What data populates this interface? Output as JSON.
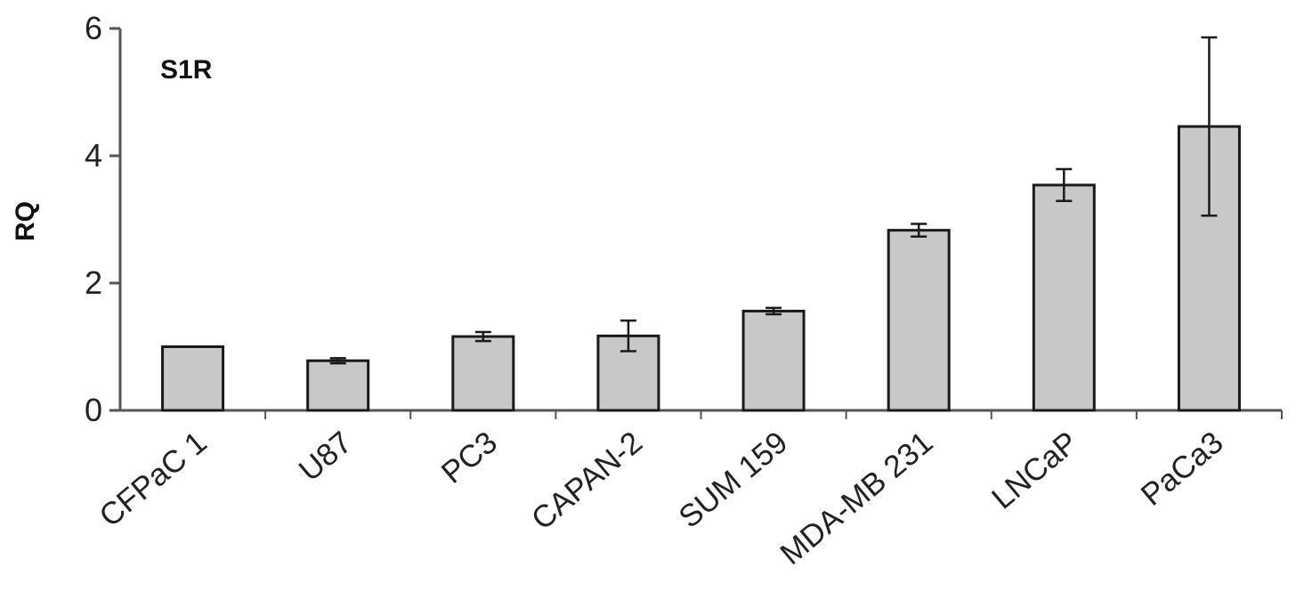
{
  "chart_data": {
    "type": "bar",
    "title": "",
    "annotation": "S1R",
    "ylabel": "RQ",
    "xlabel": "",
    "ylim": [
      0,
      6
    ],
    "yticks": [
      0,
      2,
      4,
      6
    ],
    "grid": false,
    "categories": [
      "CFPaC 1",
      "U87",
      "PC3",
      "CAPAN-2",
      "SUM 159",
      "MDA-MB 231",
      "LNCaP",
      "PaCa3"
    ],
    "values": [
      1.0,
      0.78,
      1.16,
      1.17,
      1.56,
      2.83,
      3.54,
      4.46
    ],
    "errors": [
      0,
      0.04,
      0.07,
      0.24,
      0.05,
      0.1,
      0.25,
      1.4
    ],
    "colors": {
      "bar_fill": "#c8c8c8",
      "bar_stroke": "#1a1a1a",
      "axis": "#555555",
      "error": "#1a1a1a"
    }
  }
}
